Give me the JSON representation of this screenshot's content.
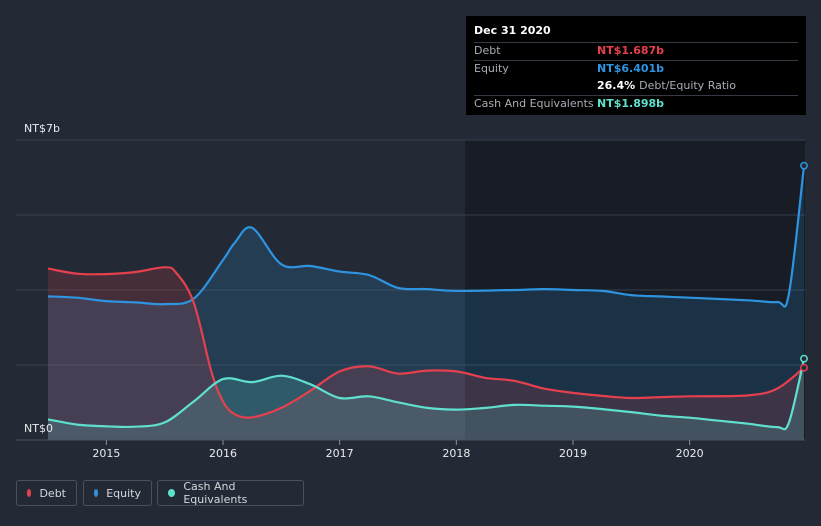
{
  "chart_data": {
    "type": "area",
    "currency": "NT$",
    "ylim": [
      0,
      7
    ],
    "y_unit": "billions",
    "y_tick_labels": [
      "NT$7b",
      "NT$0"
    ],
    "x_ticks": [
      2015,
      2016,
      2017,
      2018,
      2019,
      2020
    ],
    "x_range": [
      2014.5,
      2020.98
    ],
    "series": [
      {
        "name": "Debt",
        "color": "#e5404e",
        "points": [
          [
            2014.5,
            4.0
          ],
          [
            2014.75,
            3.88
          ],
          [
            2015.0,
            3.87
          ],
          [
            2015.25,
            3.92
          ],
          [
            2015.5,
            4.03
          ],
          [
            2015.6,
            3.9
          ],
          [
            2015.75,
            3.2
          ],
          [
            2015.9,
            1.6
          ],
          [
            2016.0,
            0.9
          ],
          [
            2016.1,
            0.6
          ],
          [
            2016.25,
            0.53
          ],
          [
            2016.5,
            0.75
          ],
          [
            2016.75,
            1.15
          ],
          [
            2017.0,
            1.6
          ],
          [
            2017.25,
            1.72
          ],
          [
            2017.5,
            1.55
          ],
          [
            2017.75,
            1.62
          ],
          [
            2018.0,
            1.6
          ],
          [
            2018.25,
            1.45
          ],
          [
            2018.5,
            1.38
          ],
          [
            2018.75,
            1.2
          ],
          [
            2019.0,
            1.1
          ],
          [
            2019.25,
            1.03
          ],
          [
            2019.5,
            0.98
          ],
          [
            2019.75,
            1.0
          ],
          [
            2020.0,
            1.02
          ],
          [
            2020.5,
            1.04
          ],
          [
            2020.75,
            1.2
          ],
          [
            2020.98,
            1.687
          ]
        ]
      },
      {
        "name": "Equity",
        "color": "#2e94e0",
        "points": [
          [
            2014.5,
            3.35
          ],
          [
            2014.75,
            3.32
          ],
          [
            2015.0,
            3.24
          ],
          [
            2015.25,
            3.21
          ],
          [
            2015.5,
            3.17
          ],
          [
            2015.75,
            3.3
          ],
          [
            2016.0,
            4.2
          ],
          [
            2016.1,
            4.6
          ],
          [
            2016.25,
            4.95
          ],
          [
            2016.5,
            4.1
          ],
          [
            2016.75,
            4.06
          ],
          [
            2017.0,
            3.93
          ],
          [
            2017.25,
            3.85
          ],
          [
            2017.5,
            3.55
          ],
          [
            2017.75,
            3.52
          ],
          [
            2018.0,
            3.48
          ],
          [
            2018.5,
            3.5
          ],
          [
            2018.75,
            3.52
          ],
          [
            2019.0,
            3.5
          ],
          [
            2019.25,
            3.48
          ],
          [
            2019.5,
            3.38
          ],
          [
            2019.75,
            3.35
          ],
          [
            2020.0,
            3.32
          ],
          [
            2020.5,
            3.26
          ],
          [
            2020.75,
            3.22
          ],
          [
            2020.85,
            3.4
          ],
          [
            2020.98,
            6.401
          ]
        ]
      },
      {
        "name": "Cash And Equivalents",
        "color": "#5fe0ce",
        "points": [
          [
            2014.5,
            0.48
          ],
          [
            2014.75,
            0.36
          ],
          [
            2015.0,
            0.32
          ],
          [
            2015.25,
            0.31
          ],
          [
            2015.5,
            0.41
          ],
          [
            2015.75,
            0.9
          ],
          [
            2016.0,
            1.42
          ],
          [
            2016.25,
            1.35
          ],
          [
            2016.5,
            1.5
          ],
          [
            2016.75,
            1.3
          ],
          [
            2017.0,
            0.98
          ],
          [
            2017.25,
            1.02
          ],
          [
            2017.5,
            0.88
          ],
          [
            2017.75,
            0.75
          ],
          [
            2018.0,
            0.71
          ],
          [
            2018.25,
            0.75
          ],
          [
            2018.5,
            0.82
          ],
          [
            2018.75,
            0.8
          ],
          [
            2019.0,
            0.78
          ],
          [
            2019.25,
            0.72
          ],
          [
            2019.5,
            0.65
          ],
          [
            2019.75,
            0.57
          ],
          [
            2020.0,
            0.52
          ],
          [
            2020.25,
            0.45
          ],
          [
            2020.5,
            0.38
          ],
          [
            2020.75,
            0.3
          ],
          [
            2020.85,
            0.4
          ],
          [
            2020.98,
            1.898
          ]
        ]
      }
    ]
  },
  "tooltip": {
    "date": "Dec 31 2020",
    "debt_label": "Debt",
    "debt_value": "NT$1.687b",
    "equity_label": "Equity",
    "equity_value": "NT$6.401b",
    "ratio_value": "26.4%",
    "ratio_label": "Debt/Equity Ratio",
    "cash_label": "Cash And Equivalents",
    "cash_value": "NT$1.898b"
  },
  "legend": {
    "debt": "Debt",
    "equity": "Equity",
    "cash": "Cash And Equivalents"
  },
  "colors": {
    "debt": "#e5404e",
    "equity": "#2e94e0",
    "cash": "#5fe0ce",
    "bg": "#232a35"
  }
}
